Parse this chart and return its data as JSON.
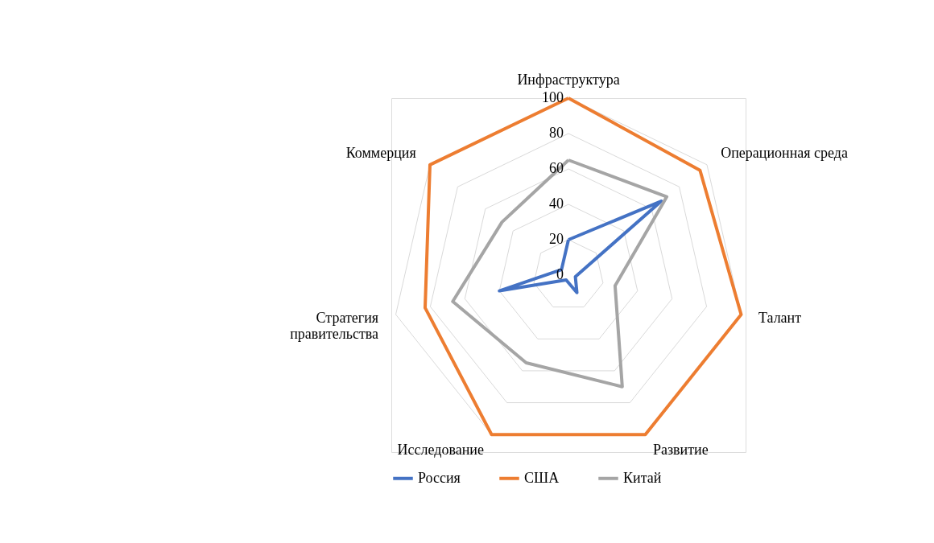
{
  "chart_data": {
    "type": "radar",
    "categories": [
      "Инфраструктура",
      "Операционная среда",
      "Талант",
      "Развитие",
      "Исследование",
      "Стратегия\nправительства",
      "Коммерция"
    ],
    "series": [
      {
        "name": "Россия",
        "color": "#4472c4",
        "values": [
          20,
          67,
          4,
          11,
          3,
          40,
          5
        ]
      },
      {
        "name": "США",
        "color": "#ed7d31",
        "values": [
          100,
          95,
          100,
          100,
          100,
          83,
          100
        ]
      },
      {
        "name": "Китай",
        "color": "#a5a5a5",
        "values": [
          65,
          71,
          27,
          70,
          55,
          67,
          48
        ]
      }
    ],
    "ylim": [
      0,
      100
    ],
    "yticks": [
      0,
      20,
      40,
      60,
      80,
      100
    ],
    "grid": true,
    "legend": "bottom",
    "marker": "none",
    "line_style": "solid"
  }
}
